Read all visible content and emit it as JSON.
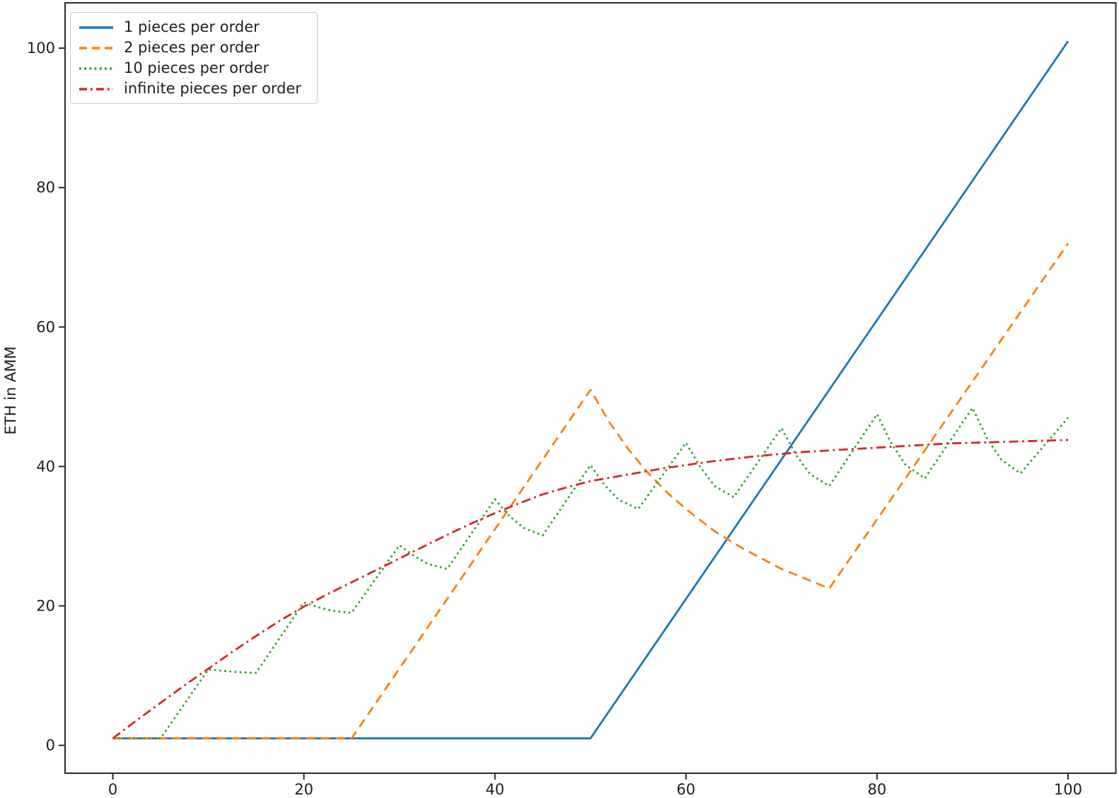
{
  "chart_data": {
    "type": "line",
    "title": "",
    "xlabel": "",
    "ylabel": "ETH in AMM",
    "xlim": [
      -5,
      105
    ],
    "ylim": [
      -4,
      106.5
    ],
    "x_ticks": [
      0,
      20,
      40,
      60,
      80,
      100
    ],
    "y_ticks": [
      0,
      20,
      40,
      60,
      80,
      100
    ],
    "grid": false,
    "legend_position": "upper-left",
    "axis_color": "#2b2b2b",
    "text_color": "#1f1f1f",
    "series": [
      {
        "name": "1 pieces per order",
        "color": "#1f77b4",
        "line_style": "solid",
        "points": [
          [
            0,
            1
          ],
          [
            50,
            1
          ],
          [
            100,
            101
          ]
        ]
      },
      {
        "name": "2 pieces per order",
        "color": "#ff7f0e",
        "line_style": "dashed",
        "points": [
          [
            0,
            1
          ],
          [
            25,
            1
          ],
          [
            50,
            51
          ],
          [
            52,
            46.3
          ],
          [
            54,
            42.4
          ],
          [
            56,
            39.1
          ],
          [
            58,
            36.3
          ],
          [
            60,
            33.9
          ],
          [
            63,
            30.7
          ],
          [
            66,
            28.2
          ],
          [
            70,
            25.3
          ],
          [
            75,
            22.5
          ],
          [
            100,
            72
          ]
        ]
      },
      {
        "name": "10 pieces per order",
        "color": "#2ca02c",
        "line_style": "dotted",
        "points": [
          [
            0,
            1
          ],
          [
            5,
            1
          ],
          [
            10,
            10.9
          ],
          [
            11.5,
            10.7
          ],
          [
            13,
            10.5
          ],
          [
            15,
            10.4
          ],
          [
            20,
            20.5
          ],
          [
            21.5,
            19.8
          ],
          [
            23,
            19.3
          ],
          [
            25,
            19.0
          ],
          [
            30,
            28.7
          ],
          [
            31.5,
            27.2
          ],
          [
            33,
            26.0
          ],
          [
            35,
            25.3
          ],
          [
            40,
            35.3
          ],
          [
            41.5,
            32.9
          ],
          [
            43,
            31.2
          ],
          [
            45,
            30.1
          ],
          [
            50,
            40.2
          ],
          [
            51.5,
            37.3
          ],
          [
            53,
            35.2
          ],
          [
            55,
            33.9
          ],
          [
            60,
            43.4
          ],
          [
            61.5,
            39.9
          ],
          [
            63,
            37.2
          ],
          [
            65,
            35.6
          ],
          [
            70,
            45.5
          ],
          [
            71.5,
            41.7
          ],
          [
            73,
            38.9
          ],
          [
            75,
            37.2
          ],
          [
            80,
            47.5
          ],
          [
            81.5,
            43.3
          ],
          [
            83,
            40.2
          ],
          [
            85,
            38.3
          ],
          [
            90,
            48.4
          ],
          [
            91.5,
            44.1
          ],
          [
            93,
            41.0
          ],
          [
            95,
            39.0
          ],
          [
            100,
            47.0
          ]
        ]
      },
      {
        "name": "infinite pieces per order",
        "color": "#d62728",
        "line_style": "dashdot",
        "points": [
          [
            0,
            1
          ],
          [
            2.5,
            3.6
          ],
          [
            5,
            6.1
          ],
          [
            7.5,
            8.6
          ],
          [
            10,
            11.0
          ],
          [
            12.5,
            13.4
          ],
          [
            15,
            15.7
          ],
          [
            17.5,
            17.9
          ],
          [
            20,
            19.9
          ],
          [
            22.5,
            21.7
          ],
          [
            25,
            23.4
          ],
          [
            27.5,
            25.1
          ],
          [
            30,
            26.8
          ],
          [
            32.5,
            28.5
          ],
          [
            35,
            30.2
          ],
          [
            37.5,
            31.8
          ],
          [
            40,
            33.3
          ],
          [
            42.5,
            34.7
          ],
          [
            45,
            36.0
          ],
          [
            47.5,
            37.0
          ],
          [
            50,
            37.9
          ],
          [
            52.5,
            38.5
          ],
          [
            55,
            39.1
          ],
          [
            57.5,
            39.7
          ],
          [
            60,
            40.2
          ],
          [
            62.5,
            40.7
          ],
          [
            65,
            41.1
          ],
          [
            67.5,
            41.5
          ],
          [
            70,
            41.8
          ],
          [
            72.5,
            42.1
          ],
          [
            75,
            42.3
          ],
          [
            77.5,
            42.5
          ],
          [
            80,
            42.7
          ],
          [
            82.5,
            42.9
          ],
          [
            85,
            43.1
          ],
          [
            87.5,
            43.3
          ],
          [
            90,
            43.4
          ],
          [
            92.5,
            43.5
          ],
          [
            95,
            43.6
          ],
          [
            97.5,
            43.7
          ],
          [
            100,
            43.8
          ]
        ]
      }
    ]
  }
}
